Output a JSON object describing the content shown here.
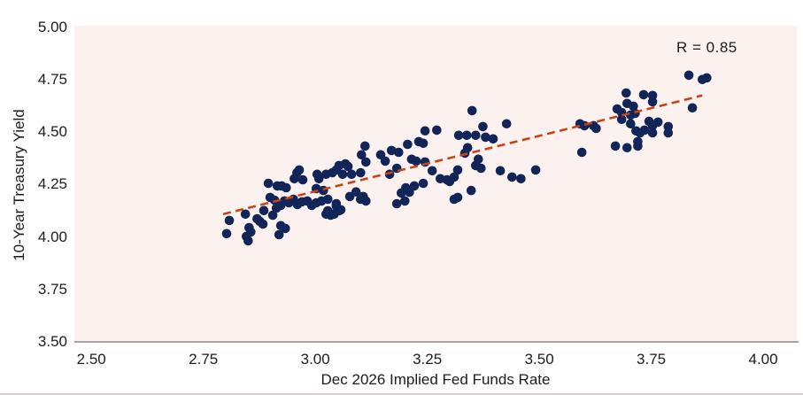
{
  "chart_data": {
    "type": "scatter",
    "title": "",
    "xlabel": "Dec 2026 Implied Fed Funds Rate",
    "ylabel": "10-Year Treasury Yield",
    "annotation": "R = 0.85",
    "legend": "none",
    "grid": false,
    "x_ticks": [
      "2.50",
      "2.75",
      "3.00",
      "3.25",
      "3.50",
      "3.75",
      "4.00"
    ],
    "x_tick_values": [
      2.5,
      2.75,
      3.0,
      3.25,
      3.5,
      3.75,
      4.0
    ],
    "y_ticks": [
      "5.00",
      "4.75",
      "4.50",
      "4.25",
      "4.00",
      "3.75",
      "3.50"
    ],
    "y_tick_values": [
      5.0,
      4.75,
      4.5,
      4.25,
      4.0,
      3.75,
      3.5
    ],
    "xlim": [
      2.462,
      4.075
    ],
    "ylim": [
      3.5,
      5.008
    ],
    "colors": {
      "point": "#122559",
      "trend_line": "#c84415",
      "plot_background": "#fbf2f0",
      "axis_line": "#a9a2a1",
      "text": "#1c1c1c"
    },
    "trend_line": {
      "style": "dashed",
      "x1": 2.794,
      "y1": 4.109,
      "x2": 3.864,
      "y2": 4.675
    },
    "points": [
      [
        2.802,
        4.016
      ],
      [
        2.808,
        4.079
      ],
      [
        2.844,
        4.109
      ],
      [
        2.852,
        4.045
      ],
      [
        2.856,
        4.024
      ],
      [
        2.846,
        4.003
      ],
      [
        2.85,
        3.982
      ],
      [
        2.87,
        4.087
      ],
      [
        2.876,
        4.075
      ],
      [
        2.883,
        4.062
      ],
      [
        2.885,
        4.126
      ],
      [
        2.905,
        4.104
      ],
      [
        2.913,
        4.138
      ],
      [
        2.923,
        4.151
      ],
      [
        2.931,
        4.172
      ],
      [
        2.941,
        4.163
      ],
      [
        2.951,
        4.18
      ],
      [
        2.96,
        4.155
      ],
      [
        2.97,
        4.168
      ],
      [
        2.982,
        4.172
      ],
      [
        2.992,
        4.151
      ],
      [
        3.002,
        4.163
      ],
      [
        3.014,
        4.172
      ],
      [
        3.028,
        4.18
      ],
      [
        2.923,
        4.054
      ],
      [
        2.933,
        4.041
      ],
      [
        2.919,
        4.011
      ],
      [
        2.899,
        4.189
      ],
      [
        2.909,
        4.176
      ],
      [
        3.028,
        4.125
      ],
      [
        3.034,
        4.104
      ],
      [
        3.047,
        4.147
      ],
      [
        3.053,
        4.125
      ],
      [
        3.024,
        4.109
      ],
      [
        3.042,
        4.109
      ],
      [
        3.057,
        4.13
      ],
      [
        3.101,
        4.18
      ],
      [
        3.113,
        4.172
      ],
      [
        3.182,
        4.159
      ],
      [
        3.2,
        4.172
      ],
      [
        3.31,
        4.18
      ],
      [
        2.895,
        4.256
      ],
      [
        2.915,
        4.244
      ],
      [
        2.925,
        4.244
      ],
      [
        2.935,
        4.235
      ],
      [
        2.953,
        4.278
      ],
      [
        2.972,
        4.273
      ],
      [
        2.959,
        4.307
      ],
      [
        2.964,
        4.32
      ],
      [
        3.004,
        4.299
      ],
      [
        3.008,
        4.278
      ],
      [
        3.002,
        4.231
      ],
      [
        3.018,
        4.222
      ],
      [
        3.024,
        4.299
      ],
      [
        3.038,
        4.307
      ],
      [
        3.047,
        4.32
      ],
      [
        3.053,
        4.341
      ],
      [
        3.067,
        4.349
      ],
      [
        3.073,
        4.337
      ],
      [
        3.061,
        4.299
      ],
      [
        3.081,
        4.299
      ],
      [
        3.101,
        4.307
      ],
      [
        3.111,
        4.434
      ],
      [
        3.103,
        4.392
      ],
      [
        3.113,
        4.358
      ],
      [
        3.077,
        4.193
      ],
      [
        3.091,
        4.215
      ],
      [
        3.107,
        4.193
      ],
      [
        3.047,
        4.159
      ],
      [
        3.146,
        4.392
      ],
      [
        3.156,
        4.362
      ],
      [
        3.17,
        4.413
      ],
      [
        3.186,
        4.404
      ],
      [
        3.182,
        4.328
      ],
      [
        3.166,
        4.299
      ],
      [
        3.206,
        4.442
      ],
      [
        3.231,
        4.455
      ],
      [
        3.241,
        4.447
      ],
      [
        3.245,
        4.506
      ],
      [
        3.271,
        4.51
      ],
      [
        3.215,
        4.371
      ],
      [
        3.225,
        4.362
      ],
      [
        3.245,
        4.358
      ],
      [
        3.261,
        4.316
      ],
      [
        3.279,
        4.278
      ],
      [
        3.294,
        4.273
      ],
      [
        3.31,
        4.286
      ],
      [
        3.3,
        4.265
      ],
      [
        3.318,
        4.32
      ],
      [
        3.32,
        4.485
      ],
      [
        3.338,
        4.485
      ],
      [
        3.358,
        4.485
      ],
      [
        3.38,
        4.476
      ],
      [
        3.397,
        4.468
      ],
      [
        3.34,
        4.426
      ],
      [
        3.334,
        4.4
      ],
      [
        3.364,
        4.371
      ],
      [
        3.358,
        4.341
      ],
      [
        3.37,
        4.328
      ],
      [
        3.35,
        4.603
      ],
      [
        3.374,
        4.527
      ],
      [
        3.427,
        4.54
      ],
      [
        3.413,
        4.316
      ],
      [
        3.439,
        4.286
      ],
      [
        3.459,
        4.278
      ],
      [
        3.492,
        4.32
      ],
      [
        3.202,
        4.235
      ],
      [
        3.221,
        4.244
      ],
      [
        3.241,
        4.256
      ],
      [
        3.192,
        4.21
      ],
      [
        3.21,
        4.214
      ],
      [
        3.318,
        4.189
      ],
      [
        3.348,
        4.222
      ],
      [
        3.591,
        4.54
      ],
      [
        3.601,
        4.531
      ],
      [
        3.621,
        4.531
      ],
      [
        3.627,
        4.518
      ],
      [
        3.595,
        4.404
      ],
      [
        3.67,
        4.434
      ],
      [
        3.674,
        4.611
      ],
      [
        3.684,
        4.594
      ],
      [
        3.684,
        4.561
      ],
      [
        3.694,
        4.687
      ],
      [
        3.696,
        4.637
      ],
      [
        3.704,
        4.582
      ],
      [
        3.714,
        4.59
      ],
      [
        3.704,
        4.54
      ],
      [
        3.71,
        4.624
      ],
      [
        3.696,
        4.426
      ],
      [
        3.716,
        4.506
      ],
      [
        3.72,
        4.455
      ],
      [
        3.72,
        4.434
      ],
      [
        3.725,
        4.497
      ],
      [
        3.733,
        4.679
      ],
      [
        3.735,
        4.51
      ],
      [
        3.745,
        4.552
      ],
      [
        3.753,
        4.675
      ],
      [
        3.753,
        4.645
      ],
      [
        3.753,
        4.531
      ],
      [
        3.753,
        4.497
      ],
      [
        3.765,
        4.548
      ],
      [
        3.788,
        4.527
      ],
      [
        3.788,
        4.497
      ],
      [
        3.834,
        4.772
      ],
      [
        3.842,
        4.616
      ],
      [
        3.864,
        4.751
      ],
      [
        3.874,
        4.759
      ]
    ]
  }
}
